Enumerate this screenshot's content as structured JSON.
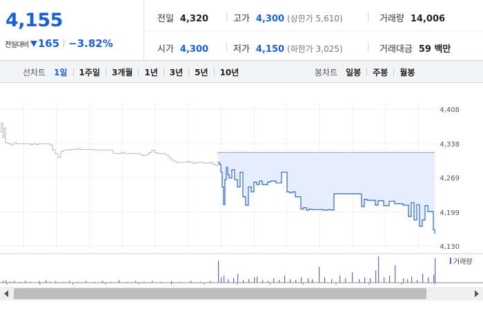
{
  "quote": {
    "price": "4,155",
    "change_label": "전일대비",
    "change_amount": "165",
    "change_pct": "−3.82%",
    "stats": {
      "prev_close_label": "전일",
      "prev_close": "4,320",
      "high_label": "고가",
      "high": "4,300",
      "upper_limit": "(상한가 5,610)",
      "volume_label": "거래량",
      "volume": "14,006",
      "open_label": "시가",
      "open": "4,300",
      "low_label": "저가",
      "low": "4,150",
      "lower_limit": "(하한가 3,025)",
      "value_label": "거래대금",
      "value": "59 백만"
    }
  },
  "tabs": {
    "line_label": "선차트",
    "line_tabs": [
      "1일",
      "1주일",
      "3개월",
      "1년",
      "3년",
      "5년",
      "10년"
    ],
    "line_active": "1일",
    "candle_label": "봉차트",
    "candle_tabs": [
      "일봉",
      "주봉",
      "월봉"
    ]
  },
  "colors": {
    "accent": "#1a5fd6",
    "prev_day_line": "#b8b8b8",
    "today_line": "#2a66d4",
    "today_fill": "#e6eefb",
    "volume_bar": "#7a55c8"
  },
  "chart_data": {
    "type": "line",
    "y_ticks": [
      4408,
      4338,
      4269,
      4199,
      4130
    ],
    "y_tick_labels": [
      "4,408",
      "4,338",
      "4,269",
      "4,199",
      "4,130"
    ],
    "ylim": [
      4130,
      4408
    ],
    "grid": true,
    "legend": "거래량",
    "reference_line": 4320,
    "series": [
      {
        "segment": "prev-day",
        "x": [
          0,
          2,
          4,
          6,
          8,
          12,
          16,
          20,
          24,
          28,
          32,
          36,
          40,
          44,
          48,
          52,
          56,
          60,
          64,
          68,
          72,
          76,
          80,
          84,
          88,
          92,
          96,
          100,
          104,
          108,
          112,
          116,
          120,
          124,
          128,
          132,
          136,
          140,
          144,
          148,
          152,
          156,
          160,
          164,
          168,
          172,
          176,
          180,
          184,
          188,
          192,
          196,
          200,
          204,
          208,
          212,
          216,
          220,
          224,
          228,
          232,
          236,
          240,
          244,
          248,
          252,
          256,
          260,
          264,
          268,
          272,
          276,
          280,
          284,
          288,
          292,
          296,
          300,
          304,
          308,
          312,
          316
        ],
        "values": [
          4362,
          4380,
          4350,
          4370,
          4340,
          4338,
          4335,
          4340,
          4338,
          4338,
          4338,
          4338,
          4338,
          4336,
          4338,
          4336,
          4338,
          4338,
          4338,
          4338,
          4335,
          4325,
          4318,
          4310,
          4322,
          4325,
          4325,
          4326,
          4326,
          4326,
          4328,
          4326,
          4326,
          4326,
          4326,
          4326,
          4325,
          4325,
          4325,
          4325,
          4325,
          4325,
          4325,
          4318,
          4318,
          4318,
          4320,
          4318,
          4318,
          4318,
          4318,
          4318,
          4318,
          4315,
          4314,
          4316,
          4320,
          4325,
          4320,
          4318,
          4318,
          4318,
          4315,
          4310,
          4305,
          4302,
          4300,
          4300,
          4300,
          4300,
          4302,
          4300,
          4298,
          4300,
          4300,
          4300,
          4298,
          4298,
          4300,
          4296,
          4294,
          4300
        ]
      },
      {
        "segment": "today",
        "x": [
          316,
          318,
          320,
          322,
          324,
          326,
          328,
          330,
          332,
          336,
          340,
          344,
          348,
          352,
          356,
          360,
          364,
          368,
          372,
          376,
          380,
          384,
          388,
          392,
          396,
          400,
          404,
          408,
          412,
          416,
          420,
          424,
          428,
          432,
          436,
          440,
          444,
          448,
          452,
          456,
          460,
          464,
          468,
          472,
          476,
          480,
          484,
          488,
          492,
          496,
          500,
          504,
          508,
          512,
          516,
          520,
          524,
          528,
          532,
          536,
          540,
          544,
          548,
          552,
          556,
          560,
          564,
          568,
          572,
          576,
          580,
          584,
          588,
          592,
          596,
          600,
          604,
          608,
          612,
          616,
          620,
          624,
          628,
          630
        ],
        "values": [
          4300,
          4296,
          4280,
          4250,
          4214,
          4265,
          4290,
          4275,
          4268,
          4285,
          4265,
          4250,
          4280,
          4230,
          4213,
          4250,
          4240,
          4260,
          4255,
          4262,
          4255,
          4255,
          4260,
          4262,
          4262,
          4258,
          4258,
          4280,
          4280,
          4240,
          4238,
          4240,
          4230,
          4230,
          4205,
          4208,
          4203,
          4205,
          4204,
          4204,
          4204,
          4204,
          4203,
          4203,
          4204,
          4203,
          4236,
          4236,
          4236,
          4236,
          4236,
          4236,
          4236,
          4236,
          4236,
          4236,
          4210,
          4225,
          4223,
          4223,
          4223,
          4213,
          4222,
          4222,
          4212,
          4212,
          4221,
          4221,
          4216,
          4216,
          4216,
          4213,
          4213,
          4190,
          4218,
          4183,
          4214,
          4170,
          4183,
          4212,
          4200,
          4200,
          4163,
          4155
        ]
      }
    ],
    "volume": {
      "x": [
        4,
        8,
        14,
        20,
        28,
        36,
        44,
        56,
        66,
        72,
        80,
        92,
        100,
        112,
        124,
        136,
        148,
        160,
        172,
        184,
        196,
        208,
        220,
        232,
        248,
        260,
        276,
        290,
        304,
        316,
        320,
        324,
        330,
        338,
        344,
        352,
        360,
        368,
        372,
        380,
        388,
        396,
        404,
        412,
        420,
        428,
        436,
        446,
        452,
        462,
        470,
        480,
        492,
        500,
        510,
        520,
        528,
        536,
        544,
        548,
        556,
        564,
        572,
        584,
        590,
        596,
        604,
        612,
        620,
        628,
        630
      ],
      "values": [
        2,
        3,
        1,
        2,
        1,
        2,
        1,
        2,
        3,
        1,
        2,
        1,
        2,
        1,
        2,
        1,
        2,
        1,
        3,
        1,
        2,
        1,
        2,
        1,
        2,
        1,
        2,
        1,
        2,
        25,
        6,
        8,
        4,
        5,
        10,
        3,
        4,
        6,
        7,
        3,
        2,
        5,
        3,
        8,
        4,
        3,
        6,
        5,
        4,
        18,
        6,
        4,
        8,
        5,
        12,
        4,
        6,
        5,
        14,
        30,
        6,
        8,
        20,
        5,
        4,
        7,
        3,
        10,
        6,
        9,
        28
      ]
    }
  }
}
